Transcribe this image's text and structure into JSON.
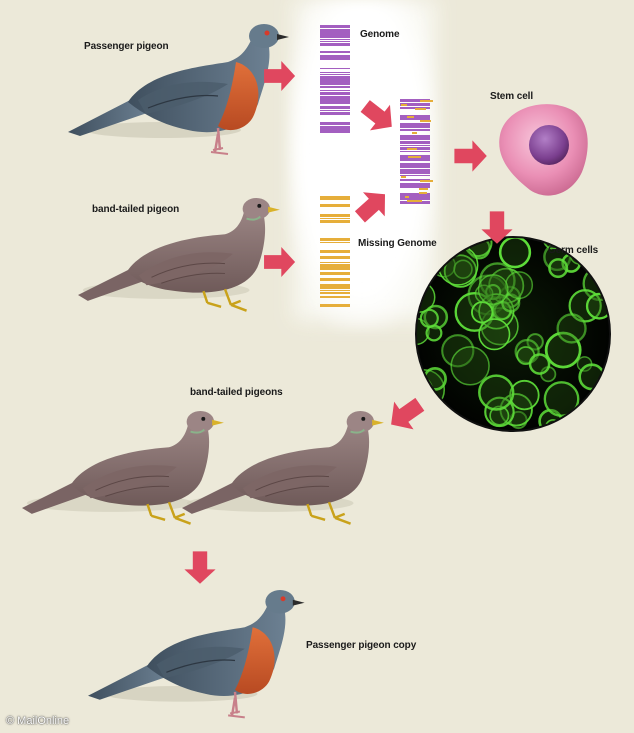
{
  "labels": {
    "passenger_pigeon": "Passenger pigeon",
    "band_tailed_pigeon": "band-tailed pigeon",
    "genome": "Genome",
    "missing_genome": "Missing Genome",
    "stem_cell": "Stem cell",
    "germ_cells": "Germ cells",
    "band_tailed_pigeons": "band-tailed pigeons",
    "passenger_pigeon_copy": "Passenger pigeon copy"
  },
  "credit": "© MailOnline",
  "colors": {
    "background": "#ece9d9",
    "arrow": "#e0475f",
    "genome_purple": "#a35fc0",
    "missing_gold": "#e6ae3a",
    "stem_cell_pink": "#e98fb6",
    "stem_cell_nucleus": "#7a3e8c",
    "germ_cell_green": "#5fe03a",
    "passenger_body": "#5b6f82",
    "passenger_breast": "#d0582a",
    "band_tailed_body": "#8a7372"
  }
}
